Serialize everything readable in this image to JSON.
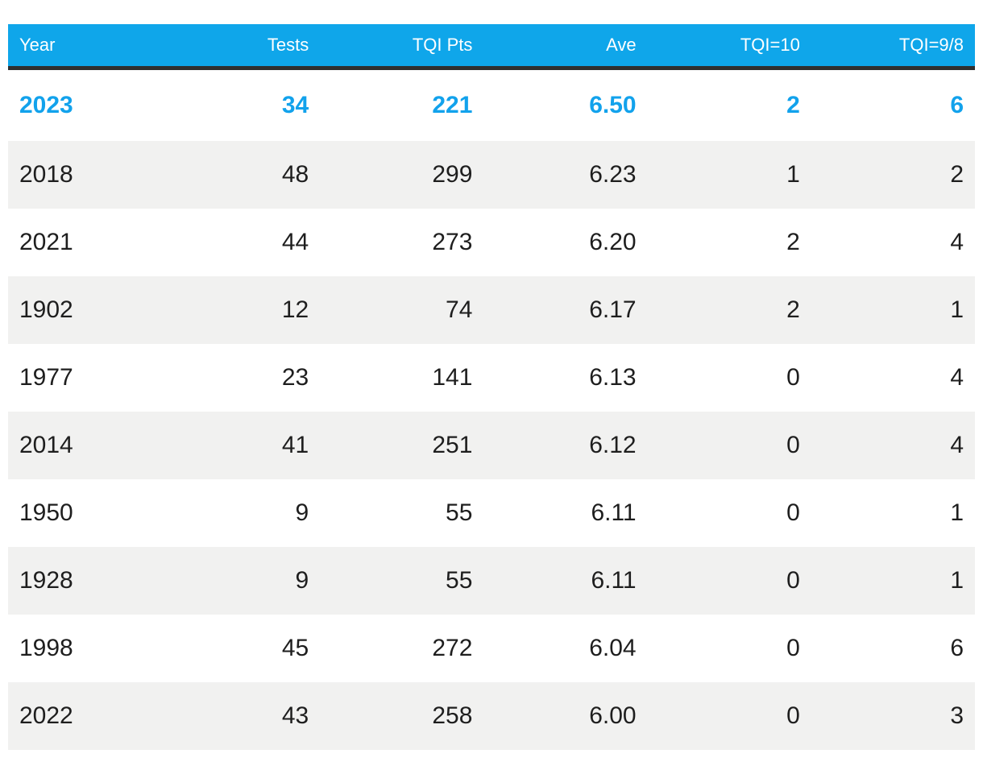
{
  "table": {
    "columns": [
      {
        "label": "Year"
      },
      {
        "label": "Tests"
      },
      {
        "label": "TQI Pts"
      },
      {
        "label": "Ave"
      },
      {
        "label": "TQI=10"
      },
      {
        "label": "TQI=9/8"
      }
    ],
    "rows": [
      {
        "cells": [
          "2023",
          "34",
          "221",
          "6.50",
          "2",
          "6"
        ],
        "highlighted": true
      },
      {
        "cells": [
          "2018",
          "48",
          "299",
          "6.23",
          "1",
          "2"
        ],
        "highlighted": false
      },
      {
        "cells": [
          "2021",
          "44",
          "273",
          "6.20",
          "2",
          "4"
        ],
        "highlighted": false
      },
      {
        "cells": [
          "1902",
          "12",
          "74",
          "6.17",
          "2",
          "1"
        ],
        "highlighted": false
      },
      {
        "cells": [
          "1977",
          "23",
          "141",
          "6.13",
          "0",
          "4"
        ],
        "highlighted": false
      },
      {
        "cells": [
          "2014",
          "41",
          "251",
          "6.12",
          "0",
          "4"
        ],
        "highlighted": false
      },
      {
        "cells": [
          "1950",
          "9",
          "55",
          "6.11",
          "0",
          "1"
        ],
        "highlighted": false
      },
      {
        "cells": [
          "1928",
          "9",
          "55",
          "6.11",
          "0",
          "1"
        ],
        "highlighted": false
      },
      {
        "cells": [
          "1998",
          "45",
          "272",
          "6.04",
          "0",
          "6"
        ],
        "highlighted": false
      },
      {
        "cells": [
          "2022",
          "43",
          "258",
          "6.00",
          "0",
          "3"
        ],
        "highlighted": false
      }
    ]
  },
  "chart_data": {
    "type": "table",
    "columns": [
      "Year",
      "Tests",
      "TQI Pts",
      "Ave",
      "TQI=10",
      "TQI=9/8"
    ],
    "rows": [
      [
        "2023",
        34,
        221,
        6.5,
        2,
        6
      ],
      [
        "2018",
        48,
        299,
        6.23,
        1,
        2
      ],
      [
        "2021",
        44,
        273,
        6.2,
        2,
        4
      ],
      [
        "1902",
        12,
        74,
        6.17,
        2,
        1
      ],
      [
        "1977",
        23,
        141,
        6.13,
        0,
        4
      ],
      [
        "2014",
        41,
        251,
        6.12,
        0,
        4
      ],
      [
        "1950",
        9,
        55,
        6.11,
        0,
        1
      ],
      [
        "1928",
        9,
        55,
        6.11,
        0,
        1
      ],
      [
        "1998",
        45,
        272,
        6.04,
        0,
        6
      ],
      [
        "2022",
        43,
        258,
        6.0,
        0,
        3
      ]
    ],
    "highlighted_row": "2023",
    "sort": "Ave descending",
    "layout": "striped rows, header bar azure with dark underline"
  },
  "colors": {
    "header_bg": "#0fa6ea",
    "header_text": "#ffffff",
    "accent": "#12a2ec",
    "stripe": "#f1f1f0",
    "border_dark": "#2f2f2f",
    "text": "#1e1e1e",
    "page_bg": "#ffffff"
  }
}
